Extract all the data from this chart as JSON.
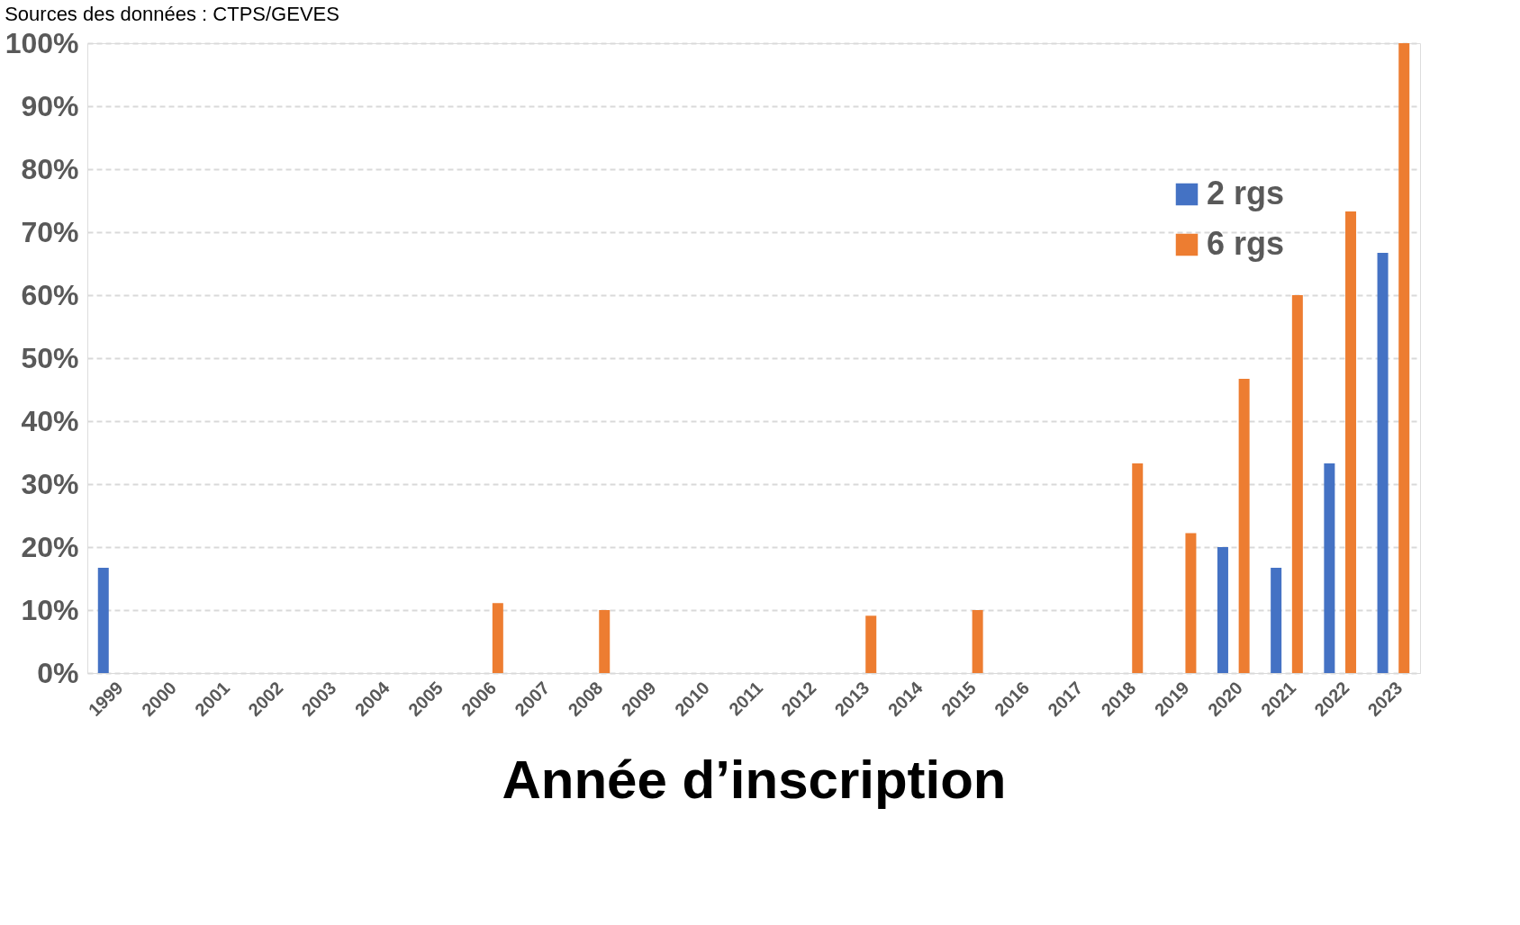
{
  "chart_data": {
    "type": "bar",
    "xlabel": "Année d’inscription",
    "annotations": [
      "Sources des données : CTPS/GEVES"
    ],
    "categories": [
      "1999",
      "2000",
      "2001",
      "2002",
      "2003",
      "2004",
      "2005",
      "2006",
      "2007",
      "2008",
      "2009",
      "2010",
      "2011",
      "2012",
      "2013",
      "2014",
      "2015",
      "2016",
      "2017",
      "2018",
      "2019",
      "2020",
      "2021",
      "2022",
      "2023"
    ],
    "series": [
      {
        "name": "2 rgs",
        "color": "#4472c4",
        "values": [
          16.7,
          0,
          0,
          0,
          0,
          0,
          0,
          0,
          0,
          0,
          0,
          0,
          0,
          0,
          0,
          0,
          0,
          0,
          0,
          0,
          0,
          20,
          16.7,
          33.3,
          66.7
        ]
      },
      {
        "name": "6 rgs",
        "color": "#ed7d31",
        "values": [
          0,
          0,
          0,
          0,
          0,
          0,
          0,
          11.1,
          0,
          10,
          0,
          0,
          0,
          0,
          9.1,
          0,
          10,
          0,
          0,
          33.3,
          22.2,
          46.7,
          60,
          73.3,
          100
        ]
      }
    ],
    "ylim": [
      0,
      100
    ],
    "yticks": [
      {
        "value": 0,
        "label": "0%"
      },
      {
        "value": 10,
        "label": "10%"
      },
      {
        "value": 20,
        "label": "20%"
      },
      {
        "value": 30,
        "label": "30%"
      },
      {
        "value": 40,
        "label": "40%"
      },
      {
        "value": 50,
        "label": "50%"
      },
      {
        "value": 60,
        "label": "60%"
      },
      {
        "value": 70,
        "label": "70%"
      },
      {
        "value": 80,
        "label": "80%"
      },
      {
        "value": 90,
        "label": "90%"
      },
      {
        "value": 100,
        "label": "100%"
      }
    ],
    "grid": "y",
    "legend": "top right"
  }
}
